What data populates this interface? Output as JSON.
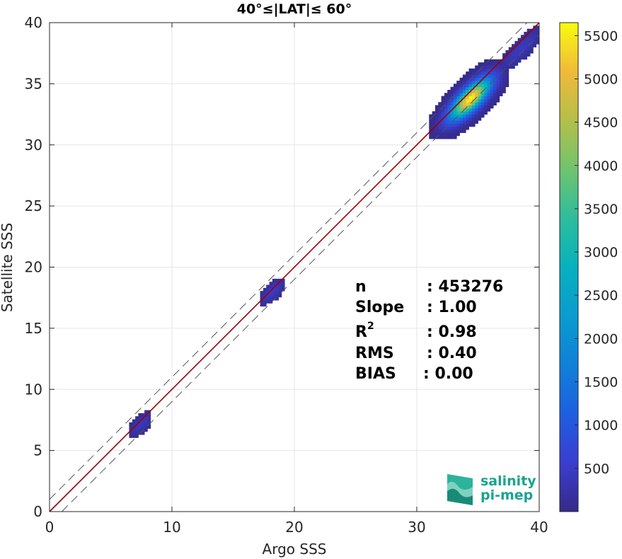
{
  "chart_data": {
    "type": "heatmap",
    "title": "40°≤|LAT|≤ 60°",
    "xlabel": "Argo SSS",
    "ylabel": "Satellite SSS",
    "xlim": [
      0,
      40
    ],
    "ylim": [
      0,
      40
    ],
    "xticks": [
      0,
      10,
      20,
      30,
      40
    ],
    "yticks": [
      0,
      5,
      10,
      15,
      20,
      25,
      30,
      35,
      40
    ],
    "grid": true,
    "colorbar": {
      "range": [
        0,
        5650
      ],
      "ticks": [
        500,
        1000,
        1500,
        2000,
        2500,
        3000,
        3500,
        4000,
        4500,
        5000,
        5500
      ],
      "colormap": "parula"
    },
    "lines": [
      {
        "name": "1:1",
        "style": "solid",
        "color": "#a00000",
        "slope": 1,
        "intercept": 0
      },
      {
        "name": "+1",
        "style": "dashed",
        "color": "#555555",
        "slope": 1,
        "intercept": 1
      },
      {
        "name": "-1",
        "style": "dashed",
        "color": "#555555",
        "slope": 1,
        "intercept": -1
      }
    ],
    "clusters": [
      {
        "x": [
          6.5,
          8.2
        ],
        "y": [
          5.8,
          8.3
        ],
        "peak": 400
      },
      {
        "x": [
          17.2,
          19.0
        ],
        "y": [
          16.8,
          19.0
        ],
        "peak": 500
      },
      {
        "x": [
          31.0,
          37.5
        ],
        "y": [
          30.5,
          36.8
        ],
        "peak": 5650
      },
      {
        "x": [
          37.0,
          39.8
        ],
        "y": [
          35.5,
          40.0
        ],
        "peak": 450
      }
    ],
    "stats": [
      {
        "label": "n",
        "value": ": 453276"
      },
      {
        "label": "Slope",
        "value": ": 1.00"
      },
      {
        "label": "R",
        "sup": "2",
        "value": ": 0.98"
      },
      {
        "label": "RMS",
        "value": ": 0.40"
      },
      {
        "label": "BIAS",
        "value": ": 0.00"
      }
    ]
  },
  "logo": {
    "line1": "salinity",
    "line2": "pi-mep"
  },
  "colors": {
    "regression": "#a00000",
    "dashed": "#555555",
    "logo": "#1aa38f"
  }
}
